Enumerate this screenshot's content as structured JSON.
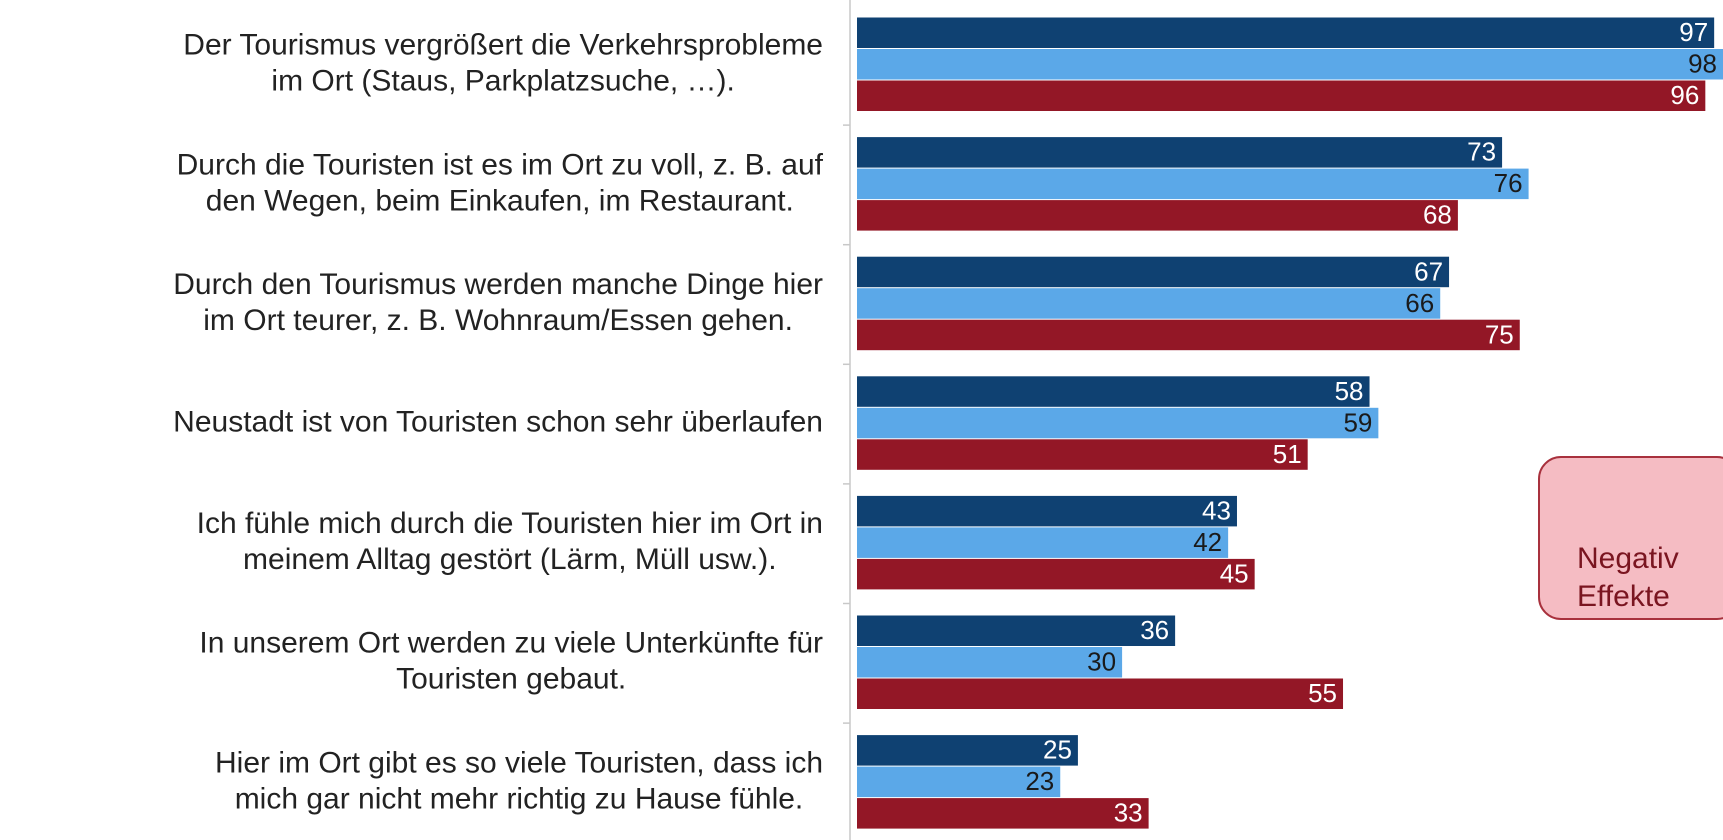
{
  "chart_data": {
    "type": "hbar",
    "categories": [
      [
        "Der Tourismus vergrößert die Verkehrsprobleme",
        "im Ort (Staus, Parkplatzsuche, …)."
      ],
      [
        "Durch die Touristen ist es im Ort zu voll, z. B. auf",
        "den Wegen, beim Einkaufen, im Restaurant."
      ],
      [
        "Durch den Tourismus werden manche Dinge hier",
        "im Ort teurer, z. B.  Wohnraum/Essen gehen."
      ],
      [
        "Neustadt ist von Touristen schon sehr überlaufen"
      ],
      [
        "Ich fühle mich durch die Touristen hier im Ort in",
        "meinem Alltag gestört (Lärm, Müll usw.)."
      ],
      [
        "In unserem Ort werden zu viele Unterkünfte für",
        "Touristen gebaut."
      ],
      [
        "Hier im Ort gibt es so viele Touristen, dass ich",
        "mich gar nicht mehr richtig zu Hause fühle."
      ]
    ],
    "series": [
      {
        "color": "#0f4172",
        "label_color": "#ffffff",
        "values": [
          97,
          73,
          67,
          58,
          43,
          36,
          25
        ]
      },
      {
        "color": "#5ba8e8",
        "label_color": "#1a1a1a",
        "values": [
          98,
          76,
          66,
          59,
          42,
          30,
          23
        ]
      },
      {
        "color": "#931726",
        "label_color": "#ffffff",
        "values": [
          96,
          68,
          75,
          51,
          45,
          55,
          33
        ]
      }
    ],
    "xlim": [
      0,
      98
    ],
    "annotation": [
      "Negativ",
      "Effekte"
    ]
  }
}
